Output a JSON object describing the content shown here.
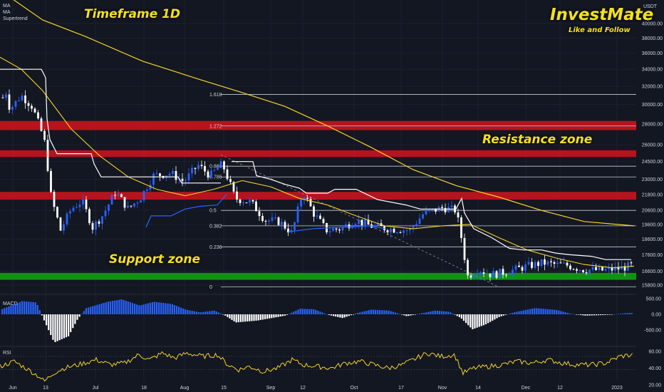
{
  "header": {
    "currency": "USDT",
    "indicators": [
      "MA",
      "MA",
      "Supertrend"
    ]
  },
  "overlays": {
    "timeframe": "Timeframe 1D",
    "brand": "InvestMate",
    "brand_sub": "Like and Follow",
    "resistance": "Resistance zone",
    "support": "Support zone"
  },
  "colors": {
    "background": "#131722",
    "resistance_band": "#c8141e",
    "support_band": "#12a012",
    "up_candle": "#2962ff",
    "down_candle": "#ffffff",
    "ma": "#f5d327",
    "supertrend_down": "#ffffff",
    "supertrend_up": "#2962ff",
    "title_text": "#f5e11a"
  },
  "chart_data": {
    "type": "candlestick",
    "timeframe": "1D",
    "x_tick_labels": [
      "Jun",
      "13",
      "Jul",
      "18",
      "Aug",
      "15",
      "Sep",
      "12",
      "Oct",
      "17",
      "Nov",
      "14",
      "Dec",
      "12",
      "2023"
    ],
    "price_axis": {
      "ticks": [
        40000,
        38000,
        36000,
        34000,
        32000,
        30000,
        28000,
        26000,
        24500,
        23000,
        21800,
        20600,
        19600,
        18600,
        17600,
        16600,
        15800
      ],
      "scale": "log",
      "unit": "USDT"
    },
    "fib_levels": [
      {
        "label": "1.618",
        "price": 31100
      },
      {
        "label": "1.272",
        "price": 27800
      },
      {
        "label": "0.886",
        "price": 24100
      },
      {
        "label": "0.786",
        "price": 23200
      },
      {
        "label": "0.5",
        "price": 20600
      },
      {
        "label": "0.382",
        "price": 19500
      },
      {
        "label": "0.236",
        "price": 18100
      },
      {
        "label": "0",
        "price": 15700
      }
    ],
    "zones": [
      {
        "label": "Resistance zone",
        "low": 27400,
        "high": 28300
      },
      {
        "label": "Resistance zone",
        "low": 24900,
        "high": 25500
      },
      {
        "label": "Resistance zone",
        "low": 21400,
        "high": 22000
      },
      {
        "label": "Support zone",
        "low": 16100,
        "high": 16500
      }
    ],
    "macd": {
      "label": "MACD",
      "ticks": [
        500,
        0,
        -500
      ]
    },
    "rsi": {
      "label": "RSI",
      "ticks": [
        60,
        40,
        20
      ]
    }
  }
}
